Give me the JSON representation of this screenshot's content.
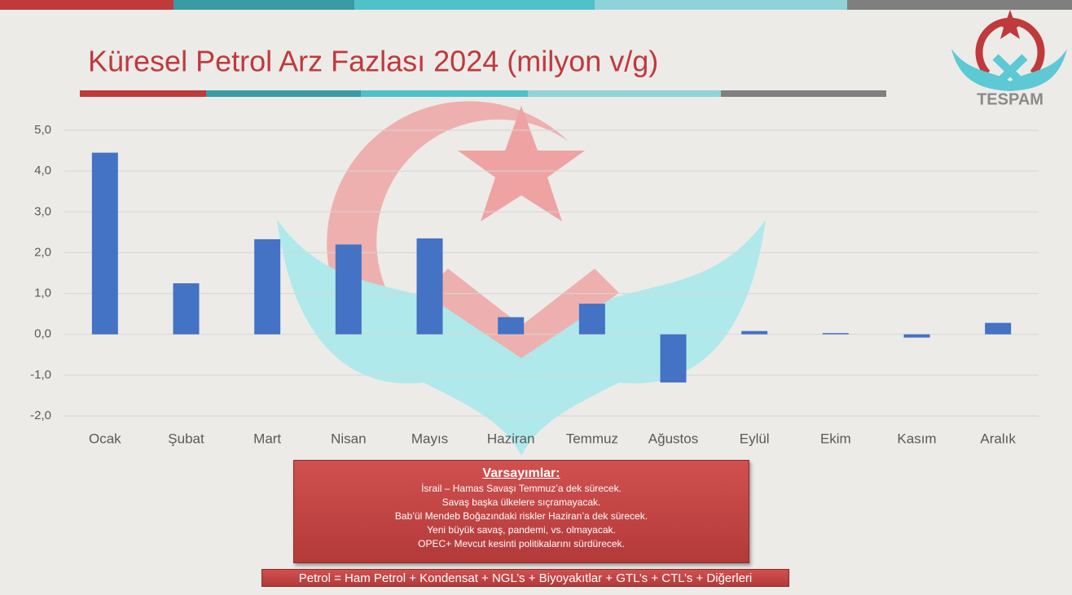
{
  "chart_data": {
    "type": "bar",
    "title": "Küresel Petrol Arz Fazlası 2024 (milyon v/g)",
    "categories": [
      "Ocak",
      "Şubat",
      "Mart",
      "Nisan",
      "Mayıs",
      "Haziran",
      "Temmuz",
      "Ağustos",
      "Eylül",
      "Ekim",
      "Kasım",
      "Aralık"
    ],
    "values": [
      4.45,
      1.25,
      2.33,
      2.2,
      2.35,
      0.42,
      0.75,
      -1.18,
      0.08,
      0.03,
      -0.08,
      0.28
    ],
    "color": "#4472c4",
    "ylim": [
      -2,
      5
    ],
    "yticks": [
      {
        "value": -2,
        "label": "-2,0"
      },
      {
        "value": -1,
        "label": "-1,0"
      },
      {
        "value": 0,
        "label": "0,0"
      },
      {
        "value": 1,
        "label": "1,0"
      },
      {
        "value": 2,
        "label": "2,0"
      },
      {
        "value": 3,
        "label": "3,0"
      },
      {
        "value": 4,
        "label": "4,0"
      },
      {
        "value": 5,
        "label": "5,0"
      }
    ],
    "grid": true,
    "annotations": {
      "heading": "Varsayımlar:",
      "lines": [
        "İsrail – Hamas Savaşı Temmuz’a dek sürecek.",
        "Savaş başka ülkelere sıçramayacak.",
        "Bab’ül Mendeb Boğazındaki riskler Haziran’a dek sürecek.",
        "Yeni büyük  savaş, pandemi, vs. olmayacak.",
        "OPEC+ Mevcut kesinti politikalarını sürdürecek."
      ],
      "footnote": "Petrol = Ham Petrol + Kondensat + NGL’s + Biyoyakıtlar + GTL’s + CTL’s + Diğerleri"
    },
    "logo_text": "TESPAM"
  }
}
